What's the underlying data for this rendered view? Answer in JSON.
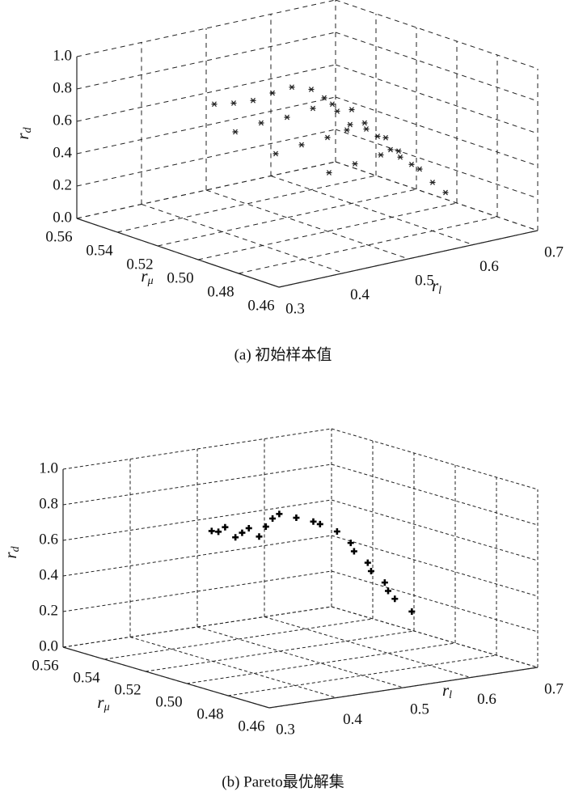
{
  "chart_data": [
    {
      "type": "scatter3d",
      "caption": "(a) 初始样本值",
      "marker": "asterisk",
      "color": "#222222",
      "grid": true,
      "xlabel": {
        "base": "r",
        "sub": "l"
      },
      "ylabel": {
        "base": "r",
        "sub": "μ"
      },
      "zlabel": {
        "base": "r",
        "sub": "d"
      },
      "xlim": [
        0.3,
        0.7
      ],
      "xticks": [
        0.3,
        0.4,
        0.5,
        0.6,
        0.7
      ],
      "ylim": [
        0.46,
        0.56
      ],
      "yticks": [
        0.46,
        0.48,
        {
          "value": 0.5,
          "label": "0.50"
        },
        0.52,
        0.54,
        0.56
      ],
      "zlim": [
        0,
        1
      ],
      "zticks": [
        {
          "value": 0,
          "label": "0.0"
        },
        0.2,
        0.4,
        0.6,
        0.8,
        {
          "value": 1,
          "label": "1.0"
        }
      ],
      "x": [
        0.45,
        0.48,
        0.51,
        0.54,
        0.57,
        0.6,
        0.62,
        0.64,
        0.66,
        0.42,
        0.46,
        0.5,
        0.54,
        0.57,
        0.6,
        0.62,
        0.64,
        0.66,
        0.42,
        0.46,
        0.5,
        0.53,
        0.56,
        0.59,
        0.61,
        0.63,
        0.44,
        0.48,
        0.52,
        0.55,
        0.58,
        0.6,
        0.62
      ],
      "y": [
        0.54,
        0.54,
        0.54,
        0.54,
        0.54,
        0.54,
        0.54,
        0.54,
        0.54,
        0.52,
        0.52,
        0.52,
        0.52,
        0.52,
        0.52,
        0.52,
        0.52,
        0.52,
        0.5,
        0.5,
        0.5,
        0.5,
        0.5,
        0.5,
        0.5,
        0.5,
        0.48,
        0.48,
        0.48,
        0.48,
        0.48,
        0.48,
        0.48
      ],
      "z": [
        0.66,
        0.64,
        0.63,
        0.65,
        0.66,
        0.62,
        0.55,
        0.45,
        0.35,
        0.6,
        0.62,
        0.62,
        0.64,
        0.64,
        0.58,
        0.48,
        0.38,
        0.28,
        0.55,
        0.57,
        0.58,
        0.6,
        0.58,
        0.5,
        0.4,
        0.3,
        0.5,
        0.52,
        0.54,
        0.5,
        0.4,
        0.3,
        0.22
      ]
    },
    {
      "type": "scatter3d",
      "caption": "(b) Pareto最优解集",
      "marker": "plus",
      "color": "#000000",
      "grid": true,
      "xlabel": {
        "base": "r",
        "sub": "l"
      },
      "ylabel": {
        "base": "r",
        "sub": "μ"
      },
      "zlabel": {
        "base": "r",
        "sub": "d"
      },
      "xlim": [
        0.3,
        0.7
      ],
      "xticks": [
        0.3,
        0.4,
        0.5,
        0.6,
        0.7
      ],
      "ylim": [
        0.46,
        0.56
      ],
      "yticks": [
        0.46,
        0.48,
        {
          "value": 0.5,
          "label": "0.50"
        },
        0.52,
        0.54,
        0.56
      ],
      "zlim": [
        0,
        1
      ],
      "zticks": [
        {
          "value": 0,
          "label": "0.0"
        },
        0.2,
        0.4,
        0.6,
        0.8,
        {
          "value": 1,
          "label": "1.0"
        }
      ],
      "x": [
        0.46,
        0.47,
        0.48,
        0.48,
        0.49,
        0.5,
        0.5,
        0.51,
        0.52,
        0.53,
        0.54,
        0.55,
        0.56,
        0.57,
        0.575,
        0.58,
        0.585,
        0.59,
        0.595,
        0.6,
        0.61,
        0.62
      ],
      "y": [
        0.54,
        0.54,
        0.54,
        0.535,
        0.535,
        0.535,
        0.53,
        0.53,
        0.53,
        0.53,
        0.525,
        0.52,
        0.52,
        0.515,
        0.51,
        0.51,
        0.505,
        0.505,
        0.5,
        0.5,
        0.5,
        0.495
      ],
      "z": [
        0.63,
        0.62,
        0.64,
        0.6,
        0.62,
        0.64,
        0.61,
        0.66,
        0.7,
        0.72,
        0.71,
        0.7,
        0.68,
        0.65,
        0.6,
        0.55,
        0.5,
        0.45,
        0.4,
        0.35,
        0.3,
        0.24
      ]
    }
  ]
}
